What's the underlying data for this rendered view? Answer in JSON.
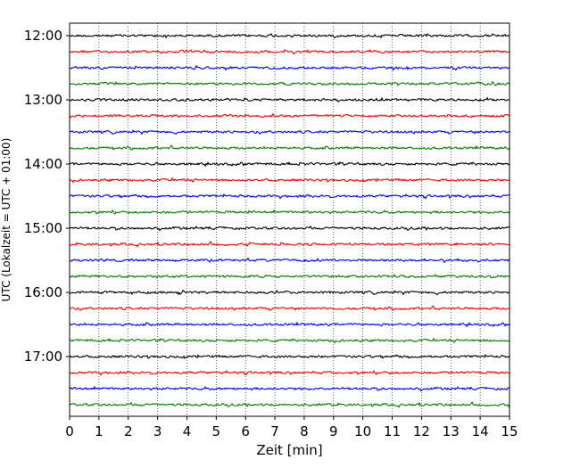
{
  "chart_data": {
    "type": "line",
    "title": "",
    "xlabel": "Zeit  [min]",
    "ylabel": "UTC (Lokalzeit = UTC + 01:00)",
    "xlim": [
      0,
      15
    ],
    "x_ticks": [
      0,
      1,
      2,
      3,
      4,
      5,
      6,
      7,
      8,
      9,
      10,
      11,
      12,
      13,
      14,
      15
    ],
    "x_tick_labels": [
      "0",
      "1",
      "2",
      "3",
      "4",
      "5",
      "6",
      "7",
      "8",
      "9",
      "10",
      "11",
      "12",
      "13",
      "14",
      "15"
    ],
    "y_tick_labels": [
      "12:00",
      "13:00",
      "14:00",
      "15:00",
      "16:00",
      "17:00"
    ],
    "grid": "vertical dotted lines at each minute",
    "trace_interval_minutes": 15,
    "trace_colors": [
      "#000000",
      "#ff0000",
      "#0000ff",
      "#007f00"
    ],
    "traces": [
      {
        "start": "12:00"
      },
      {
        "start": "12:15"
      },
      {
        "start": "12:30"
      },
      {
        "start": "12:45"
      },
      {
        "start": "13:00"
      },
      {
        "start": "13:15"
      },
      {
        "start": "13:30"
      },
      {
        "start": "13:45"
      },
      {
        "start": "14:00"
      },
      {
        "start": "14:15"
      },
      {
        "start": "14:30"
      },
      {
        "start": "14:45"
      },
      {
        "start": "15:00"
      },
      {
        "start": "15:15"
      },
      {
        "start": "15:30"
      },
      {
        "start": "15:45"
      },
      {
        "start": "16:00"
      },
      {
        "start": "16:15"
      },
      {
        "start": "16:30"
      },
      {
        "start": "16:45"
      },
      {
        "start": "17:00"
      },
      {
        "start": "17:15"
      },
      {
        "start": "17:30"
      },
      {
        "start": "17:45"
      }
    ]
  }
}
